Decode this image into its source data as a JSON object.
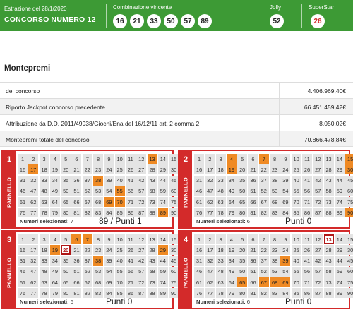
{
  "header": {
    "draw_label": "Estrazione del 28/1/2020",
    "contest": "CONCORSO NUMERO 12",
    "combo_label": "Combinazione vincente",
    "numbers": [
      "16",
      "21",
      "33",
      "50",
      "57",
      "89"
    ],
    "jolly_label": "Jolly",
    "jolly": "52",
    "superstar_label": "SuperStar",
    "superstar": "26"
  },
  "montepremi": {
    "title": "Montepremi",
    "rows": [
      {
        "label": "del concorso",
        "value": "4.406.969,40€"
      },
      {
        "label": "Riporto Jackpot concorso precedente",
        "value": "66.451.459,42€"
      },
      {
        "label": "Attribuzione da D.D. 2011/49938/Giochi/Ena del 16/12/11 art. 2 comma 2",
        "value": "8.050,02€"
      },
      {
        "label": "Montepremi totale del concorso",
        "value": "70.866.478,84€"
      }
    ]
  },
  "panel_label": "PANNELLO",
  "selected_label": "Numeri selezionati:",
  "panels": [
    {
      "number": "1",
      "selected_count": "7",
      "result": "89 / Punti 1",
      "selected": [
        13,
        17,
        38,
        55,
        69,
        70,
        89
      ],
      "boxed": []
    },
    {
      "number": "2",
      "selected_count": "6",
      "result": "Punti 0",
      "selected": [
        4,
        7,
        15,
        19,
        30,
        90
      ],
      "boxed": []
    },
    {
      "number": "3",
      "selected_count": "6",
      "result": "Punti 0",
      "selected": [
        6,
        7,
        19,
        29,
        38
      ],
      "boxed": [
        20
      ]
    },
    {
      "number": "4",
      "selected_count": "6",
      "result": "Punti 0",
      "selected": [
        39,
        65,
        67,
        68,
        69
      ],
      "boxed": [
        13
      ]
    }
  ],
  "colors": {
    "green": "#3d9a35",
    "red": "#d32a2a",
    "selected": "#ef8a24"
  }
}
